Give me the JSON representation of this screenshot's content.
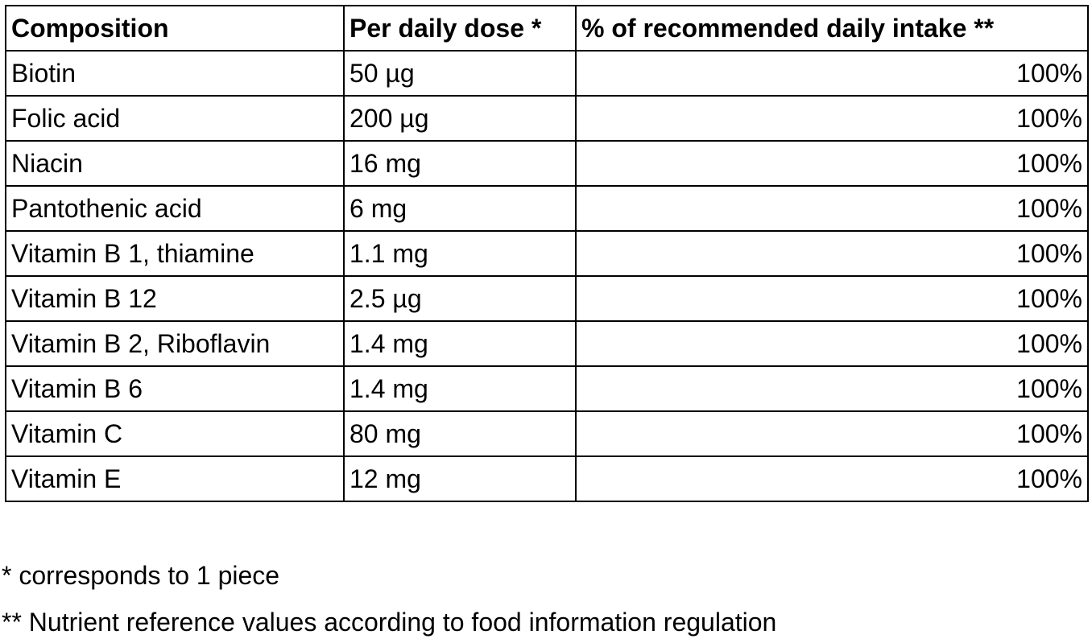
{
  "table": {
    "header": [
      "Composition",
      "Per daily dose *",
      "% of recommended daily intake **"
    ],
    "rows": [
      [
        "Biotin",
        "50 µg",
        "100%"
      ],
      [
        "Folic acid",
        "200 µg",
        "100%"
      ],
      [
        "Niacin",
        "16 mg",
        "100%"
      ],
      [
        "Pantothenic acid",
        "6 mg",
        "100%"
      ],
      [
        "Vitamin B 1, thiamine",
        "1.1 mg",
        "100%"
      ],
      [
        "Vitamin B 12",
        "2.5 µg",
        "100%"
      ],
      [
        "Vitamin B 2, Riboflavin",
        "1.4 mg",
        "100%"
      ],
      [
        "Vitamin B 6",
        "1.4 mg",
        "100%"
      ],
      [
        "Vitamin C",
        "80 mg",
        "100%"
      ],
      [
        "Vitamin E",
        "12 mg",
        "100%"
      ]
    ]
  },
  "footnotes": [
    "* corresponds to 1 piece",
    "** Nutrient reference values according to food information regulation"
  ]
}
